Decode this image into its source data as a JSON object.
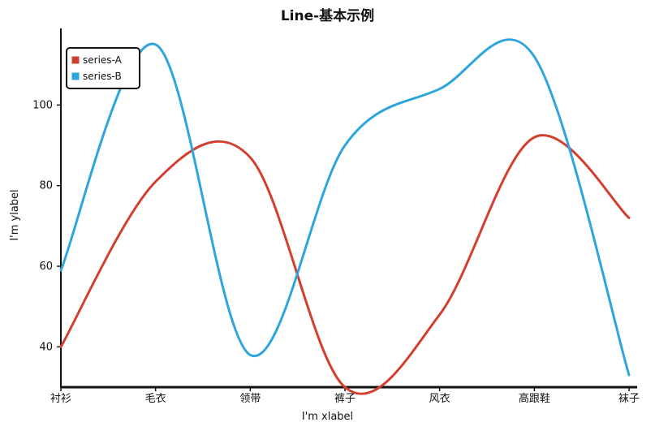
{
  "chart_data": {
    "type": "line",
    "title": "Line-基本示例",
    "xlabel": "I'm xlabel",
    "ylabel": "I'm ylabel",
    "categories": [
      "衬衫",
      "毛衣",
      "领带",
      "裤子",
      "风衣",
      "高跟鞋",
      "袜子"
    ],
    "series": [
      {
        "name": "series-A",
        "color": "#d33f2f",
        "values": [
          40,
          81,
          87,
          30,
          48,
          92,
          72
        ]
      },
      {
        "name": "series-B",
        "color": "#2fa5dd",
        "values": [
          59,
          115,
          38,
          90,
          104,
          112,
          33
        ]
      }
    ],
    "yticks": [
      40,
      60,
      80,
      100
    ],
    "ylim": [
      30,
      117
    ],
    "legend_position": "top-left",
    "grid": false,
    "smooth": true
  }
}
